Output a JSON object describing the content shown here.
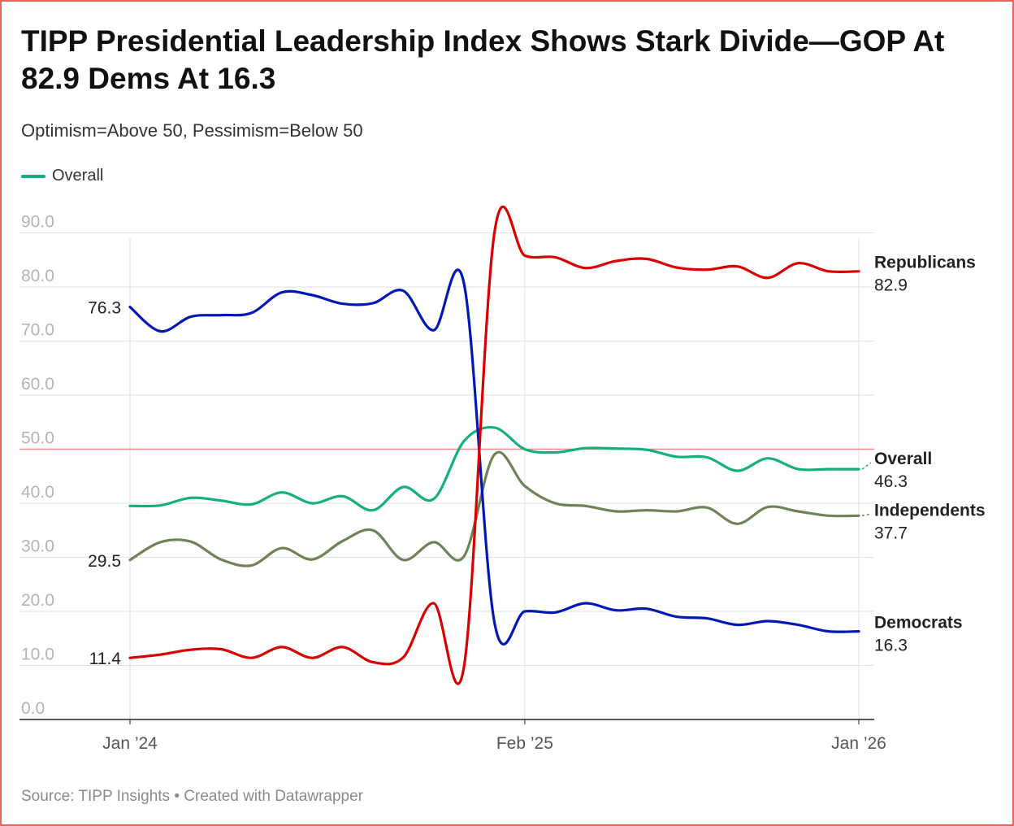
{
  "title": "TIPP Presidential Leadership Index Shows Stark Divide—GOP At 82.9 Dems At 16.3",
  "subtitle": "Optimism=Above 50, Pessimism=Below 50",
  "legend": {
    "label": "Overall",
    "color": "#13b07a"
  },
  "source": "Source: TIPP Insights • Created with Datawrapper",
  "chart_data": {
    "type": "line",
    "title": "TIPP Presidential Leadership Index Shows Stark Divide—GOP At 82.9 Dems At 16.3",
    "subtitle": "Optimism=Above 50, Pessimism=Below 50",
    "x": [
      "Jan 2024",
      "Feb 2024",
      "Mar 2024",
      "Apr 2024",
      "May 2024",
      "Jun 2024",
      "Jul 2024",
      "Aug 2024",
      "Sep 2024",
      "Oct 2024",
      "Nov 2024",
      "Dec 2024",
      "Jan 2025",
      "Feb 2025",
      "Mar 2025",
      "Apr 2025",
      "May 2025",
      "Jun 2025",
      "Jul 2025",
      "Aug 2025",
      "Sep 2025",
      "Oct 2025",
      "Nov 2025",
      "Dec 2025",
      "Jan 2026"
    ],
    "x_ticks": [
      {
        "index": 0,
        "label": "Jan ’24"
      },
      {
        "index": 13,
        "label": "Feb ’25"
      },
      {
        "index": 24,
        "label": "Jan ’26"
      }
    ],
    "ylim": [
      0,
      90
    ],
    "y_ticks": [
      "0.0",
      "10.0",
      "20.0",
      "30.0",
      "40.0",
      "50.0",
      "60.0",
      "70.0",
      "80.0",
      "90.0"
    ],
    "reference_line": {
      "value": 50,
      "color": "#f08a8a"
    },
    "series": [
      {
        "name": "Republicans",
        "color": "#d90000",
        "values": [
          11.4,
          12.0,
          12.9,
          13.0,
          11.4,
          13.4,
          11.4,
          13.4,
          10.6,
          11.5,
          21.5,
          9.8,
          90.0,
          85.8,
          85.5,
          83.5,
          84.8,
          85.2,
          83.6,
          83.2,
          83.8,
          81.7,
          84.4,
          82.9,
          82.9
        ],
        "start_label": "11.4",
        "end_label": "82.9"
      },
      {
        "name": "Democrats",
        "color": "#0018b5",
        "values": [
          76.3,
          71.8,
          74.5,
          74.8,
          75.2,
          79.0,
          78.5,
          76.9,
          77.0,
          79.3,
          72.0,
          80.6,
          18.0,
          20.0,
          19.8,
          21.5,
          20.2,
          20.5,
          19.0,
          18.7,
          17.5,
          18.2,
          17.5,
          16.3,
          16.3
        ],
        "start_label": "76.3",
        "end_label": "16.3"
      },
      {
        "name": "Overall",
        "color": "#13b07a",
        "values": [
          39.5,
          39.6,
          41.0,
          40.5,
          39.8,
          42.0,
          40.0,
          41.3,
          38.7,
          43.0,
          40.8,
          51.5,
          54.0,
          50.0,
          49.4,
          50.2,
          50.1,
          49.9,
          48.6,
          48.5,
          46.0,
          48.3,
          46.3,
          46.3,
          46.3
        ],
        "start_label": "",
        "end_label": "46.3"
      },
      {
        "name": "Independents",
        "color": "#6f8358",
        "values": [
          29.5,
          32.8,
          32.9,
          29.6,
          28.5,
          31.7,
          29.6,
          33.0,
          35.0,
          29.5,
          32.8,
          30.2,
          49.0,
          43.2,
          40.0,
          39.5,
          38.5,
          38.7,
          38.5,
          39.2,
          36.2,
          39.3,
          38.5,
          37.7,
          37.7
        ],
        "start_label": "29.5",
        "end_label": "37.7"
      }
    ]
  }
}
